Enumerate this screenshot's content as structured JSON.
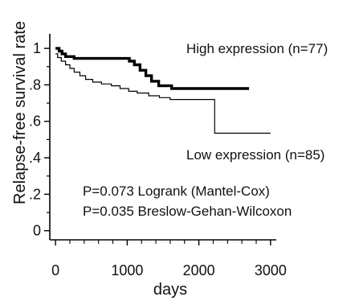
{
  "chart_data": {
    "type": "line",
    "title": "",
    "xlabel": "days",
    "ylabel": "Relapse-free survival rate",
    "xlim": [
      -80,
      3080
    ],
    "ylim": [
      -0.05,
      1.08
    ],
    "grid": false,
    "x_ticks": [
      0,
      1000,
      2000,
      3000
    ],
    "x_tick_labels": [
      "0",
      "1000",
      "2000",
      "3000"
    ],
    "y_ticks": [
      0,
      0.2,
      0.4,
      0.6,
      0.8,
      1.0
    ],
    "y_tick_labels": [
      "0",
      ".2",
      ".4",
      ".6",
      ".8",
      "1"
    ],
    "series": [
      {
        "name": "High expression (n=77)",
        "color": "#000000",
        "line": "thick",
        "steps": [
          [
            0,
            1.0
          ],
          [
            50,
            0.985
          ],
          [
            90,
            0.97
          ],
          [
            140,
            0.955
          ],
          [
            260,
            0.945
          ],
          [
            1030,
            0.93
          ],
          [
            1100,
            0.91
          ],
          [
            1180,
            0.88
          ],
          [
            1260,
            0.85
          ],
          [
            1340,
            0.82
          ],
          [
            1440,
            0.795
          ],
          [
            1620,
            0.78
          ],
          [
            2700,
            0.78
          ]
        ]
      },
      {
        "name": "Low expression (n=85)",
        "color": "#000000",
        "line": "thin",
        "steps": [
          [
            0,
            0.97
          ],
          [
            30,
            0.95
          ],
          [
            80,
            0.93
          ],
          [
            140,
            0.91
          ],
          [
            200,
            0.89
          ],
          [
            260,
            0.87
          ],
          [
            340,
            0.85
          ],
          [
            420,
            0.83
          ],
          [
            520,
            0.815
          ],
          [
            640,
            0.805
          ],
          [
            780,
            0.795
          ],
          [
            900,
            0.78
          ],
          [
            1020,
            0.765
          ],
          [
            1140,
            0.755
          ],
          [
            1300,
            0.74
          ],
          [
            1450,
            0.73
          ],
          [
            1600,
            0.72
          ],
          [
            2200,
            0.72
          ],
          [
            2220,
            0.535
          ],
          [
            3000,
            0.535
          ]
        ]
      }
    ],
    "annotations": [
      "High expression (n=77)",
      "Low expression (n=85)",
      "P=0.073 Logrank (Mantel-Cox)",
      "P=0.035 Breslow-Gehan-Wilcoxon"
    ]
  }
}
